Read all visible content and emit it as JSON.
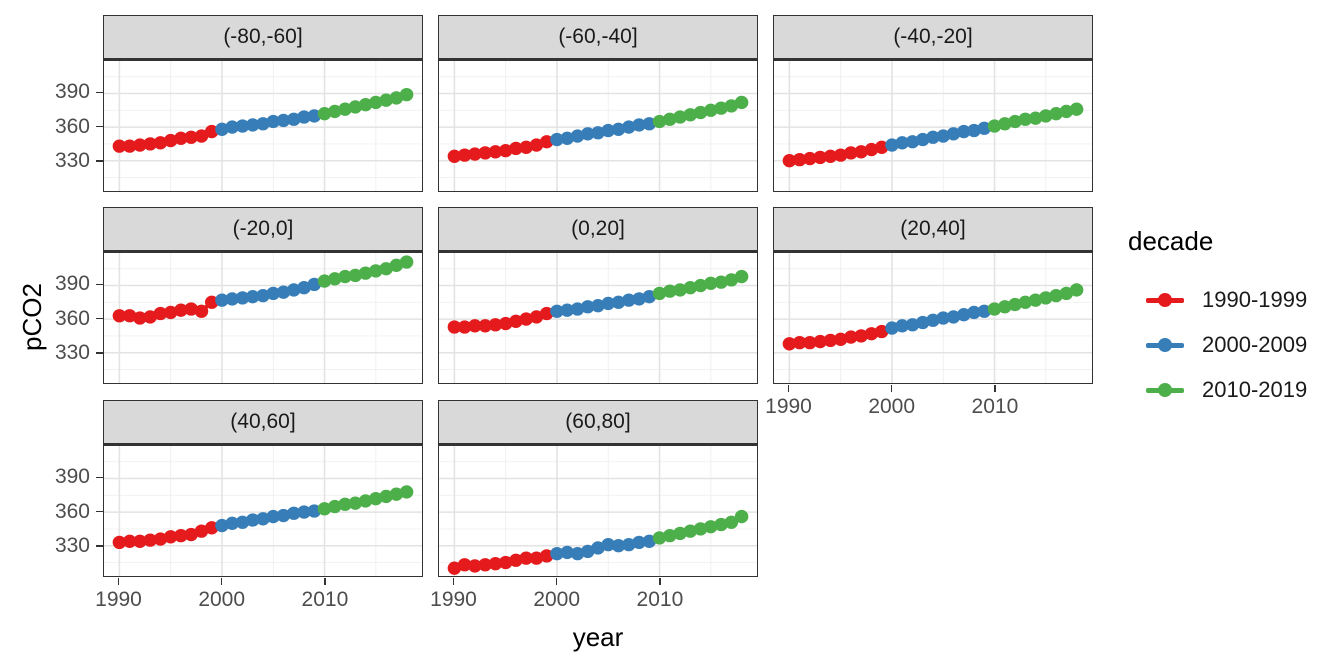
{
  "chart_data": {
    "type": "scatter",
    "title": "",
    "xlabel": "year",
    "ylabel": "pCO2",
    "legend": {
      "title": "decade",
      "position": "right"
    },
    "grid": true,
    "xlim": [
      1988.5,
      2019.5
    ],
    "ylim": [
      303,
      419
    ],
    "x_ticks": [
      1990,
      2000,
      2010
    ],
    "x_minor_ticks": [
      1995,
      2005,
      2015
    ],
    "y_ticks": [
      330,
      360,
      390
    ],
    "y_minor_ticks": [
      315,
      345,
      375,
      405
    ],
    "years": [
      1990,
      1991,
      1992,
      1993,
      1994,
      1995,
      1996,
      1997,
      1998,
      1999,
      2000,
      2001,
      2002,
      2003,
      2004,
      2005,
      2006,
      2007,
      2008,
      2009,
      2010,
      2011,
      2012,
      2013,
      2014,
      2015,
      2016,
      2017,
      2018
    ],
    "series": [
      {
        "name": "1990-1999",
        "color": "#E41A1C",
        "year_from": 1990,
        "year_to": 1999
      },
      {
        "name": "2000-2009",
        "color": "#377EB8",
        "year_from": 2000,
        "year_to": 2009
      },
      {
        "name": "2010-2019",
        "color": "#4DAF4A",
        "year_from": 2010,
        "year_to": 2019
      }
    ],
    "facets": [
      {
        "label": "(-80,-60]",
        "values": [
          343,
          343,
          344,
          345,
          346,
          348,
          350,
          351,
          352,
          356,
          358,
          360,
          361,
          362,
          363,
          365,
          366,
          367,
          369,
          370,
          372,
          374,
          376,
          378,
          380,
          382,
          384,
          386,
          389
        ]
      },
      {
        "label": "(-60,-40]",
        "values": [
          334,
          335,
          336,
          337,
          338,
          339,
          341,
          342,
          344,
          347,
          349,
          350,
          352,
          354,
          355,
          357,
          358,
          360,
          362,
          363,
          365,
          367,
          369,
          371,
          373,
          375,
          377,
          379,
          382
        ]
      },
      {
        "label": "(-40,-20]",
        "values": [
          330,
          331,
          332,
          333,
          334,
          335,
          337,
          338,
          340,
          342,
          344,
          346,
          347,
          349,
          351,
          352,
          354,
          356,
          357,
          359,
          361,
          363,
          365,
          367,
          368,
          370,
          372,
          374,
          376
        ]
      },
      {
        "label": "(-20,0]",
        "values": [
          363,
          363,
          361,
          362,
          365,
          366,
          368,
          369,
          367,
          375,
          377,
          378,
          379,
          380,
          381,
          383,
          384,
          386,
          388,
          391,
          394,
          396,
          398,
          399,
          401,
          403,
          405,
          408,
          411
        ]
      },
      {
        "label": "(0,20]",
        "values": [
          353,
          353,
          354,
          354,
          355,
          356,
          358,
          360,
          362,
          365,
          367,
          368,
          369,
          371,
          372,
          374,
          375,
          377,
          378,
          380,
          383,
          385,
          386,
          388,
          390,
          392,
          393,
          395,
          398
        ]
      },
      {
        "label": "(20,40]",
        "values": [
          338,
          339,
          339,
          340,
          341,
          342,
          344,
          345,
          347,
          349,
          352,
          354,
          355,
          357,
          359,
          361,
          362,
          364,
          366,
          367,
          369,
          371,
          373,
          375,
          377,
          379,
          381,
          383,
          386
        ]
      },
      {
        "label": "(40,60]",
        "values": [
          333,
          334,
          334,
          335,
          336,
          338,
          339,
          340,
          343,
          346,
          348,
          350,
          351,
          353,
          354,
          356,
          357,
          359,
          360,
          361,
          363,
          365,
          367,
          368,
          370,
          372,
          374,
          376,
          378
        ]
      },
      {
        "label": "(60,80]",
        "values": [
          310,
          313,
          312,
          313,
          314,
          315,
          317,
          319,
          319,
          321,
          323,
          324,
          323,
          325,
          328,
          331,
          330,
          331,
          333,
          334,
          337,
          339,
          341,
          343,
          345,
          347,
          349,
          351,
          356
        ]
      }
    ],
    "style": {
      "strip_bg": "#d9d9d9",
      "panel_border": "#333333",
      "grid_major": "#e3e3e3",
      "grid_minor": "#f0f0f0",
      "tick_text": "#4d4d4d"
    }
  }
}
